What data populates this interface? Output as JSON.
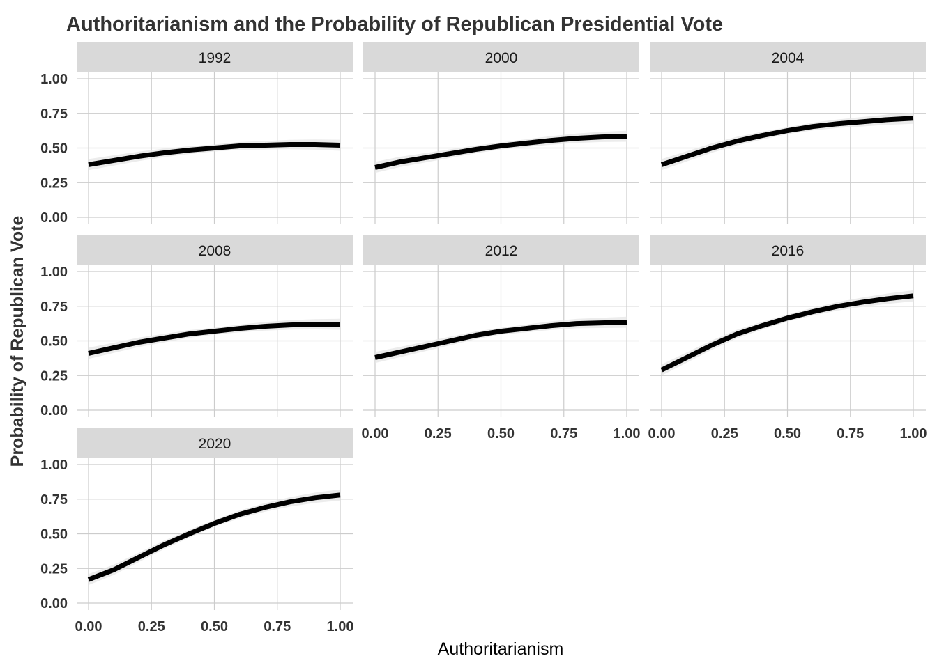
{
  "chart_data": {
    "type": "line",
    "title": "Authoritarianism and the Probability of Republican Presidential Vote",
    "xlabel": "Authoritarianism",
    "ylabel": "Probability of Republican Vote",
    "xlim": [
      0,
      1
    ],
    "ylim": [
      0,
      1
    ],
    "x_ticks": [
      "0.00",
      "0.25",
      "0.50",
      "0.75",
      "1.00"
    ],
    "y_ticks": [
      "0.00",
      "0.25",
      "0.50",
      "0.75",
      "1.00"
    ],
    "grid": true,
    "legend": "none",
    "line_color": "#000000",
    "band_color": "#e6e6e6",
    "strip_color": "#d9d9d9",
    "x": [
      0.0,
      0.1,
      0.2,
      0.3,
      0.4,
      0.5,
      0.6,
      0.7,
      0.8,
      0.9,
      1.0
    ],
    "panels": [
      {
        "label": "1992",
        "y": [
          0.38,
          0.41,
          0.44,
          0.465,
          0.485,
          0.5,
          0.515,
          0.52,
          0.525,
          0.525,
          0.52
        ]
      },
      {
        "label": "2000",
        "y": [
          0.36,
          0.4,
          0.43,
          0.46,
          0.49,
          0.515,
          0.535,
          0.555,
          0.57,
          0.58,
          0.585
        ]
      },
      {
        "label": "2004",
        "y": [
          0.38,
          0.44,
          0.5,
          0.55,
          0.59,
          0.625,
          0.655,
          0.675,
          0.69,
          0.705,
          0.715
        ]
      },
      {
        "label": "2008",
        "y": [
          0.41,
          0.45,
          0.49,
          0.52,
          0.55,
          0.57,
          0.59,
          0.605,
          0.615,
          0.62,
          0.62
        ]
      },
      {
        "label": "2012",
        "y": [
          0.38,
          0.42,
          0.46,
          0.5,
          0.54,
          0.57,
          0.59,
          0.61,
          0.625,
          0.63,
          0.635
        ]
      },
      {
        "label": "2016",
        "y": [
          0.29,
          0.38,
          0.47,
          0.55,
          0.61,
          0.665,
          0.71,
          0.75,
          0.78,
          0.805,
          0.825
        ]
      },
      {
        "label": "2020",
        "y": [
          0.17,
          0.24,
          0.33,
          0.42,
          0.5,
          0.575,
          0.64,
          0.69,
          0.73,
          0.76,
          0.78
        ]
      }
    ]
  }
}
